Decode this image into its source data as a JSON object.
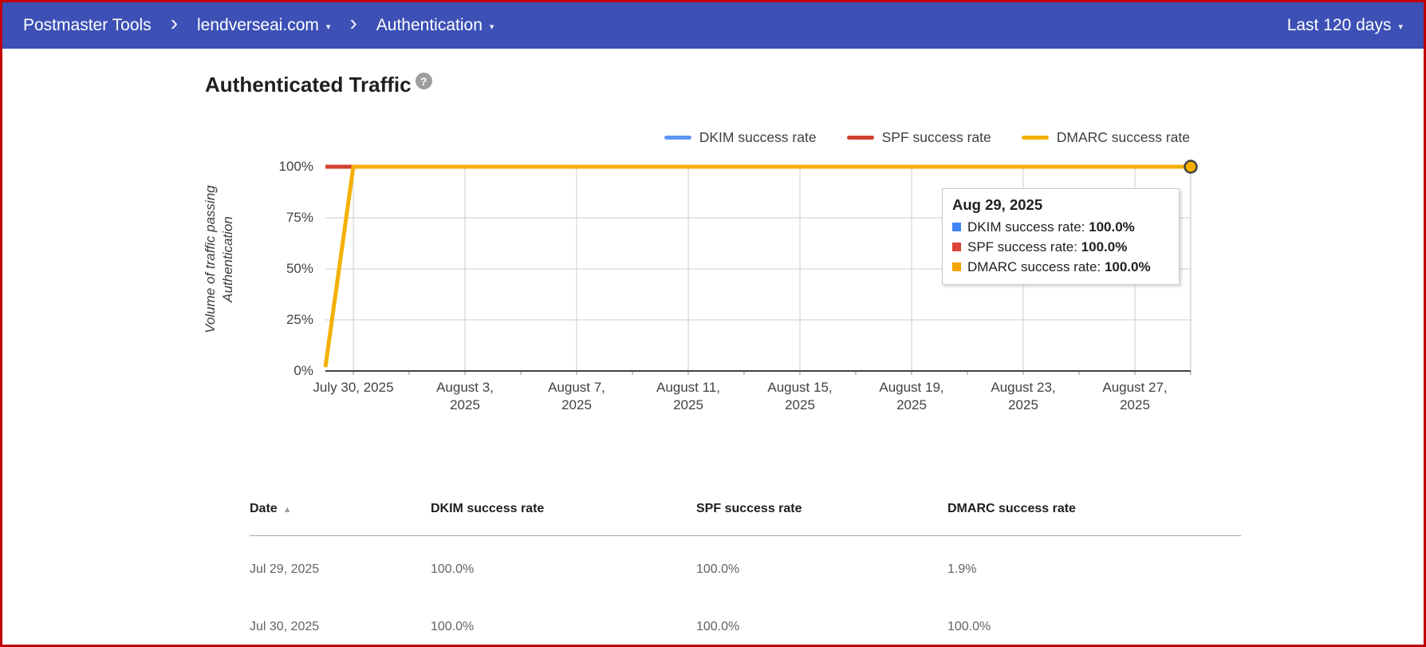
{
  "header": {
    "product": "Postmaster Tools",
    "breadcrumb_domain": "lendverseai.com",
    "breadcrumb_section": "Authentication",
    "date_range": "Last 120 days"
  },
  "icons": {
    "chevron_right": "›",
    "caret_down": "▾",
    "help": "?",
    "sort_asc": "▲"
  },
  "section": {
    "title": "Authenticated Traffic"
  },
  "chart_data": {
    "type": "line",
    "title": "Authenticated Traffic",
    "ylabel": "Volume of traffic passing Authentication",
    "ylabel_lines": [
      "Volume of traffic passing",
      "Authentication"
    ],
    "xlabel": "",
    "ylim": [
      0,
      100
    ],
    "yticks": [
      {
        "value": 0,
        "label": "0%"
      },
      {
        "value": 25,
        "label": "25%"
      },
      {
        "value": 50,
        "label": "50%"
      },
      {
        "value": 75,
        "label": "75%"
      },
      {
        "value": 100,
        "label": "100%"
      }
    ],
    "x_start_date": "July 29, 2025",
    "x_end_date": "Aug 29, 2025",
    "x_total_days": 31,
    "xticks": [
      {
        "day": 1,
        "lines": [
          "July 30, 2025"
        ]
      },
      {
        "day": 5,
        "lines": [
          "August 3,",
          "2025"
        ]
      },
      {
        "day": 9,
        "lines": [
          "August 7,",
          "2025"
        ]
      },
      {
        "day": 13,
        "lines": [
          "August 11,",
          "2025"
        ]
      },
      {
        "day": 17,
        "lines": [
          "August 15,",
          "2025"
        ]
      },
      {
        "day": 21,
        "lines": [
          "August 19,",
          "2025"
        ]
      },
      {
        "day": 25,
        "lines": [
          "August 23,",
          "2025"
        ]
      },
      {
        "day": 29,
        "lines": [
          "August 27,",
          "2025"
        ]
      }
    ],
    "grid": true,
    "legend_position": "top-right",
    "hover_day": 31,
    "series": [
      {
        "name": "DKIM success rate",
        "color": "#5e97f6",
        "points": [
          [
            0,
            100
          ],
          [
            31,
            100
          ]
        ]
      },
      {
        "name": "SPF success rate",
        "color": "#d3402f",
        "points": [
          [
            0,
            100
          ],
          [
            31,
            100
          ]
        ]
      },
      {
        "name": "DMARC success rate",
        "color": "#f4b000",
        "points": [
          [
            0,
            1.9
          ],
          [
            1,
            100
          ],
          [
            31,
            100
          ]
        ],
        "end_marker_day": 31
      }
    ]
  },
  "tooltip": {
    "date": "Aug 29, 2025",
    "rows": [
      {
        "label": "DKIM success rate",
        "value": "100.0%",
        "color": "#4285f4"
      },
      {
        "label": "SPF success rate",
        "value": "100.0%",
        "color": "#db4437"
      },
      {
        "label": "DMARC success rate",
        "value": "100.0%",
        "color": "#f4a400"
      }
    ]
  },
  "table": {
    "columns": [
      {
        "label": "Date",
        "sorted": "asc"
      },
      {
        "label": "DKIM success rate",
        "sorted": null
      },
      {
        "label": "SPF success rate",
        "sorted": null
      },
      {
        "label": "DMARC success rate",
        "sorted": null
      }
    ],
    "rows": [
      [
        "Jul 29, 2025",
        "100.0%",
        "100.0%",
        "1.9%"
      ],
      [
        "Jul 30, 2025",
        "100.0%",
        "100.0%",
        "100.0%"
      ]
    ]
  },
  "colors": {
    "header_bg": "#3d50b5",
    "frame_border": "#c00000",
    "gridline": "#cecece",
    "axis": "#424242"
  }
}
